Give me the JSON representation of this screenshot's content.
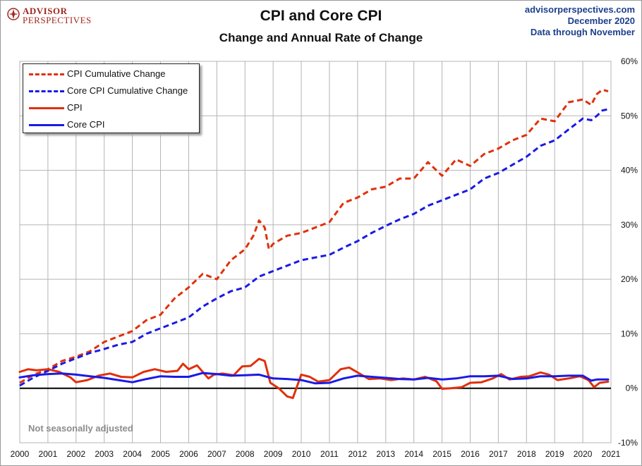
{
  "logo": {
    "line1": "ADVISOR",
    "line2": "PERSPECTIVES"
  },
  "header": {
    "title": "CPI and Core CPI",
    "subtitle": "Change and Annual Rate of Change"
  },
  "source": {
    "site": "advisorperspectives.com",
    "date": "December 2020",
    "through": "Data through November"
  },
  "note": "Not seasonally adjusted",
  "colors": {
    "cpi": "#e0300c",
    "core": "#1a1ae6",
    "zero_line": "#000000",
    "grid": "#b4b4b4"
  },
  "chart_data": {
    "type": "line",
    "title": "CPI and Core CPI",
    "subtitle": "Change and Annual Rate of Change",
    "x_ticks": [
      "2000",
      "2001",
      "2002",
      "2003",
      "2004",
      "2005",
      "2006",
      "2007",
      "2008",
      "2009",
      "2010",
      "2011",
      "2012",
      "2013",
      "2014",
      "2015",
      "2016",
      "2017",
      "2018",
      "2019",
      "2020",
      "2021"
    ],
    "y_ticks": [
      "-10%",
      "0%",
      "10%",
      "20%",
      "30%",
      "40%",
      "50%",
      "60%"
    ],
    "xlim": [
      2000,
      2021
    ],
    "ylim": [
      -10,
      60
    ],
    "grid": true,
    "legend_position": "top-left",
    "series": [
      {
        "name": "CPI Cumulative Change",
        "style": "dashed",
        "color": "#e0300c",
        "x": [
          2000.0,
          2000.5,
          2001.0,
          2001.5,
          2002.0,
          2002.5,
          2003.0,
          2003.5,
          2004.0,
          2004.5,
          2005.0,
          2005.5,
          2006.0,
          2006.5,
          2007.0,
          2007.5,
          2008.0,
          2008.3,
          2008.5,
          2008.7,
          2008.85,
          2009.0,
          2009.5,
          2010.0,
          2010.5,
          2011.0,
          2011.5,
          2012.0,
          2012.5,
          2013.0,
          2013.5,
          2014.0,
          2014.5,
          2015.0,
          2015.5,
          2016.0,
          2016.5,
          2017.0,
          2017.5,
          2018.0,
          2018.5,
          2019.0,
          2019.5,
          2020.0,
          2020.3,
          2020.5,
          2020.7,
          2020.9
        ],
        "y": [
          1.0,
          2.5,
          3.5,
          5.0,
          5.8,
          6.8,
          8.5,
          9.5,
          10.5,
          12.5,
          13.5,
          16.5,
          18.5,
          21.0,
          20.0,
          23.5,
          25.5,
          28.0,
          30.8,
          29.5,
          25.5,
          26.5,
          28.0,
          28.5,
          29.5,
          30.5,
          34.0,
          35.0,
          36.5,
          37.0,
          38.5,
          38.5,
          41.5,
          39.0,
          42.0,
          40.8,
          43.0,
          44.0,
          45.5,
          46.5,
          49.5,
          49.0,
          52.5,
          53.0,
          52.0,
          54.0,
          54.8,
          54.5
        ]
      },
      {
        "name": "Core CPI Cumulative Change",
        "style": "dashed",
        "color": "#1a1ae6",
        "x": [
          2000.0,
          2000.5,
          2001.0,
          2001.5,
          2002.0,
          2002.5,
          2003.0,
          2003.5,
          2004.0,
          2004.5,
          2005.0,
          2005.5,
          2006.0,
          2006.5,
          2007.0,
          2007.5,
          2008.0,
          2008.5,
          2009.0,
          2009.5,
          2010.0,
          2010.5,
          2011.0,
          2011.5,
          2012.0,
          2012.5,
          2013.0,
          2013.5,
          2014.0,
          2014.5,
          2015.0,
          2015.5,
          2016.0,
          2016.5,
          2017.0,
          2017.5,
          2018.0,
          2018.5,
          2019.0,
          2019.5,
          2020.0,
          2020.3,
          2020.5,
          2020.7,
          2020.9
        ],
        "y": [
          0.5,
          2.0,
          3.2,
          4.5,
          5.5,
          6.5,
          7.2,
          8.0,
          8.5,
          10.0,
          11.0,
          12.0,
          13.0,
          15.0,
          16.5,
          17.8,
          18.5,
          20.5,
          21.5,
          22.5,
          23.5,
          24.0,
          24.5,
          25.8,
          27.0,
          28.5,
          29.8,
          31.0,
          32.0,
          33.5,
          34.5,
          35.5,
          36.5,
          38.5,
          39.5,
          41.0,
          42.5,
          44.5,
          45.5,
          47.5,
          49.5,
          49.2,
          50.0,
          51.0,
          51.2
        ]
      },
      {
        "name": "CPI",
        "style": "solid",
        "color": "#e0300c",
        "x": [
          2000.0,
          2000.3,
          2000.6,
          2001.0,
          2001.4,
          2001.8,
          2002.0,
          2002.4,
          2002.8,
          2003.2,
          2003.6,
          2004.0,
          2004.4,
          2004.8,
          2005.2,
          2005.6,
          2005.8,
          2006.0,
          2006.3,
          2006.7,
          2006.9,
          2007.2,
          2007.6,
          2007.9,
          2008.2,
          2008.5,
          2008.7,
          2008.9,
          2009.2,
          2009.5,
          2009.7,
          2010.0,
          2010.3,
          2010.6,
          2011.0,
          2011.4,
          2011.7,
          2012.0,
          2012.4,
          2012.8,
          2013.2,
          2013.6,
          2014.0,
          2014.4,
          2014.8,
          2015.0,
          2015.3,
          2015.7,
          2016.0,
          2016.4,
          2016.8,
          2017.1,
          2017.4,
          2017.8,
          2018.1,
          2018.5,
          2018.8,
          2019.1,
          2019.5,
          2019.9,
          2020.2,
          2020.4,
          2020.6,
          2020.9
        ],
        "y": [
          3.0,
          3.5,
          3.3,
          3.5,
          3.0,
          2.0,
          1.1,
          1.5,
          2.3,
          2.7,
          2.1,
          2.0,
          3.0,
          3.5,
          3.0,
          3.2,
          4.5,
          3.5,
          4.2,
          1.8,
          2.5,
          2.7,
          2.4,
          4.0,
          4.1,
          5.4,
          5.0,
          1.0,
          0.0,
          -1.5,
          -1.8,
          2.5,
          2.1,
          1.2,
          1.5,
          3.5,
          3.8,
          2.9,
          1.7,
          1.8,
          1.5,
          1.8,
          1.6,
          2.1,
          1.3,
          -0.1,
          0.0,
          0.2,
          1.0,
          1.1,
          1.8,
          2.6,
          1.6,
          2.1,
          2.2,
          2.9,
          2.5,
          1.5,
          1.8,
          2.2,
          1.5,
          0.2,
          1.0,
          1.2
        ]
      },
      {
        "name": "Core CPI",
        "style": "solid",
        "color": "#1a1ae6",
        "x": [
          2000.0,
          2000.5,
          2001.0,
          2001.5,
          2002.0,
          2002.5,
          2003.0,
          2003.5,
          2004.0,
          2004.5,
          2005.0,
          2005.5,
          2006.0,
          2006.5,
          2007.0,
          2007.5,
          2008.0,
          2008.5,
          2009.0,
          2009.5,
          2010.0,
          2010.5,
          2011.0,
          2011.5,
          2012.0,
          2012.5,
          2013.0,
          2013.5,
          2014.0,
          2014.5,
          2015.0,
          2015.5,
          2016.0,
          2016.5,
          2017.0,
          2017.5,
          2018.0,
          2018.5,
          2019.0,
          2019.5,
          2020.0,
          2020.3,
          2020.5,
          2020.7,
          2020.9
        ],
        "y": [
          2.0,
          2.4,
          2.6,
          2.7,
          2.5,
          2.2,
          1.9,
          1.5,
          1.1,
          1.7,
          2.2,
          2.1,
          2.1,
          2.8,
          2.6,
          2.3,
          2.4,
          2.5,
          1.8,
          1.7,
          1.5,
          0.9,
          1.0,
          1.8,
          2.3,
          2.1,
          1.9,
          1.7,
          1.6,
          1.9,
          1.6,
          1.8,
          2.2,
          2.2,
          2.3,
          1.7,
          1.8,
          2.2,
          2.2,
          2.3,
          2.3,
          1.4,
          1.6,
          1.6,
          1.6
        ]
      }
    ]
  }
}
